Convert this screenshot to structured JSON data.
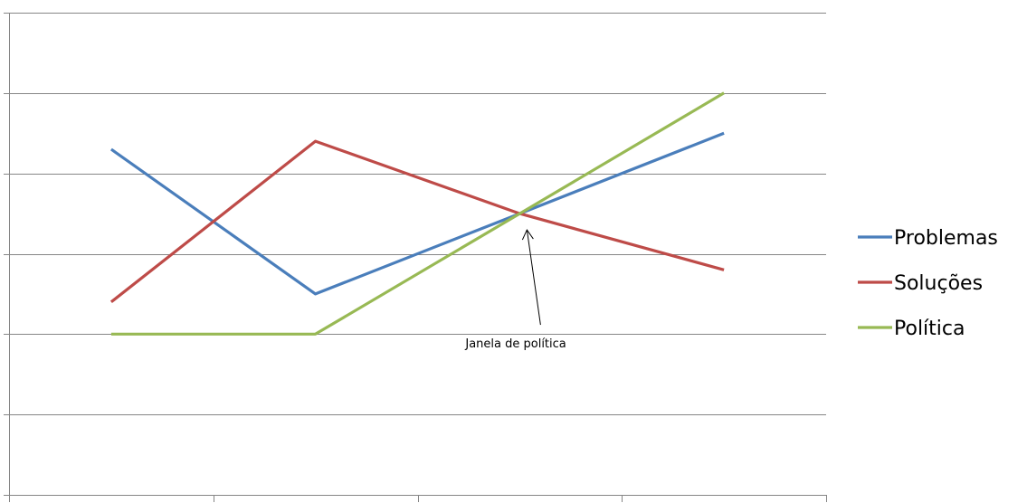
{
  "chart_data": {
    "type": "line",
    "categories": [
      "",
      "",
      "",
      ""
    ],
    "series": [
      {
        "name": "Problemas",
        "color": "#4A7EBB",
        "values": [
          4.3,
          2.5,
          3.5,
          4.5
        ]
      },
      {
        "name": "Soluções",
        "color": "#BE4B48",
        "values": [
          2.4,
          4.4,
          3.5,
          2.8
        ]
      },
      {
        "name": "Política",
        "color": "#98B954",
        "values": [
          2.0,
          2.0,
          3.5,
          5.0
        ]
      }
    ],
    "ylim": [
      0,
      6
    ],
    "y_gridlines": [
      1,
      2,
      3,
      4,
      5,
      6
    ],
    "grid": true,
    "legend": "right",
    "annotation": {
      "text": "Janela de política",
      "points_to": {
        "category_index": 2,
        "value": 3.5
      }
    }
  }
}
